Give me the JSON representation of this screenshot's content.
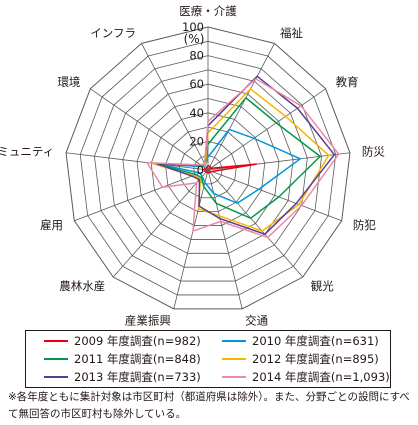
{
  "chart_data": {
    "type": "radar",
    "unit_label": "(%)",
    "scale": {
      "min": 0,
      "max": 100,
      "step": 10
    },
    "tick_labels": [
      "0",
      "20",
      "40",
      "60",
      "80",
      "100"
    ],
    "axes": [
      "医療・介護",
      "福祉",
      "教育",
      "防災",
      "防犯",
      "観光",
      "交通",
      "産業振興",
      "農林水産",
      "雇用",
      "地域コミュニティ",
      "環境",
      "インフラ"
    ],
    "series": [
      {
        "name": "2009 年度調査(n=982)",
        "color": "#e60012",
        "values": [
          3,
          3,
          2,
          34,
          3,
          2,
          2,
          2,
          2,
          2,
          3,
          2,
          2
        ]
      },
      {
        "name": "2010 年度調査(n=631)",
        "color": "#0095d9",
        "values": [
          9,
          32,
          39,
          65,
          38,
          31,
          17,
          9,
          6,
          6,
          36,
          4,
          4
        ]
      },
      {
        "name": "2011 年度調査(n=848)",
        "color": "#009944",
        "values": [
          18,
          57,
          58,
          79,
          53,
          45,
          24,
          12,
          7,
          9,
          38,
          5,
          4
        ]
      },
      {
        "name": "2012 年度調査(n=895)",
        "color": "#f8b500",
        "values": [
          26,
          64,
          66,
          85,
          68,
          57,
          33,
          28,
          8,
          11,
          40,
          6,
          4
        ]
      },
      {
        "name": "2013 年度調査(n=733)",
        "color": "#5a3e8e",
        "values": [
          31,
          74,
          76,
          89,
          66,
          60,
          35,
          26,
          9,
          12,
          36,
          6,
          5
        ]
      },
      {
        "name": "2014 年度調査(n=1,093)",
        "color": "#ea8aa6",
        "values": [
          34,
          72,
          79,
          92,
          70,
          63,
          37,
          44,
          12,
          34,
          43,
          6,
          5
        ]
      }
    ]
  },
  "legend": [
    {
      "label": "2009 年度調査(n=982)",
      "color": "#e60012"
    },
    {
      "label": "2010 年度調査(n=631)",
      "color": "#0095d9"
    },
    {
      "label": "2011 年度調査(n=848)",
      "color": "#009944"
    },
    {
      "label": "2012 年度調査(n=895)",
      "color": "#f8b500"
    },
    {
      "label": "2013 年度調査(n=733)",
      "color": "#5a3e8e"
    },
    {
      "label": "2014 年度調査(n=1,093)",
      "color": "#ea8aa6"
    }
  ],
  "note": "※各年度ともに集計対象は市区町村（都道府県は除外）。また、分野ごとの設問にすべて無回答の市区町村も除外している。"
}
